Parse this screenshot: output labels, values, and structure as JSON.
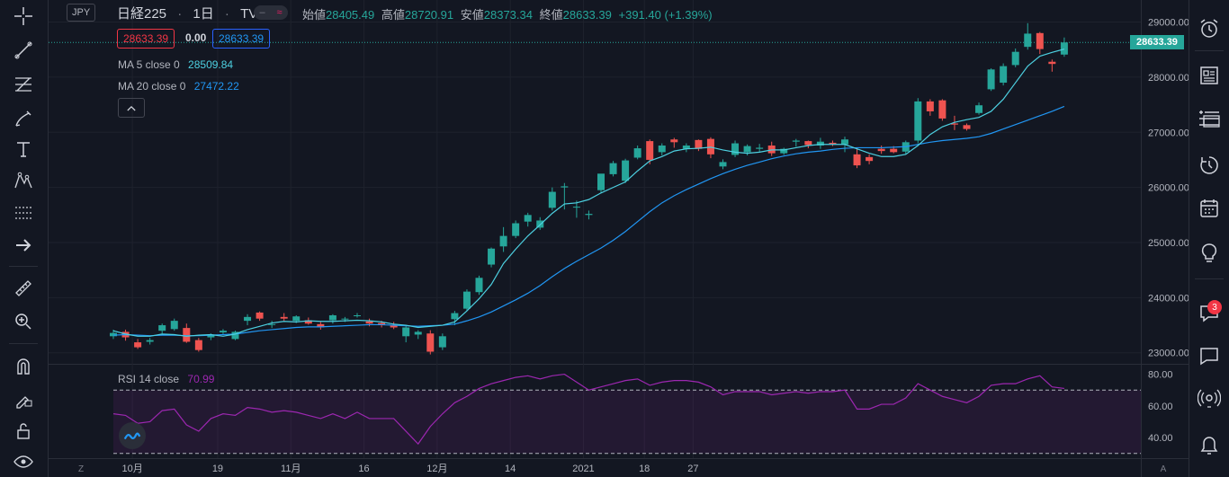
{
  "header": {
    "currency": "JPY",
    "symbol": "日経225",
    "interval": "1日",
    "exchange": "TVC",
    "ohlc": [
      {
        "label": "始値",
        "value": "28405.49"
      },
      {
        "label": "高値",
        "value": "28720.91"
      },
      {
        "label": "安値",
        "value": "28373.34"
      },
      {
        "label": "終値",
        "value": "28633.39"
      }
    ],
    "change": "+391.40 (+1.39%)",
    "sell_price": "28633.39",
    "spread": "0.00",
    "buy_price": "28633.39"
  },
  "indicators": {
    "ma5_label": "MA 5 close 0",
    "ma5_value": "28509.84",
    "ma20_label": "MA 20 close 0",
    "ma20_value": "27472.22",
    "rsi_label": "RSI 14 close",
    "rsi_value": "70.99"
  },
  "current_price_label": "28633.39",
  "right_toolbar": {
    "chat_badge": "3"
  },
  "colors": {
    "up": "#26a69a",
    "down": "#ef5350",
    "ma5": "#4dd0e1",
    "ma20": "#2196f3",
    "rsi": "#9c27b0"
  },
  "chart_data": {
    "type": "candlestick",
    "price_axis_ticks": [
      "29000.00",
      "28000.00",
      "27000.00",
      "26000.00",
      "25000.00",
      "24000.00",
      "23000.00"
    ],
    "price_axis_ticks_values": [
      29000,
      28000,
      27000,
      26000,
      25000,
      24000,
      23000
    ],
    "price_range": [
      22800,
      29400
    ],
    "rsi_axis_ticks": [
      "80.00",
      "60.00",
      "40.00"
    ],
    "rsi_axis_ticks_values": [
      80,
      60,
      40
    ],
    "rsi_range": [
      27,
      86
    ],
    "rsi_bands": [
      70,
      30
    ],
    "time_axis_labels": [
      "10月",
      "19",
      "11月",
      "16",
      "12月",
      "14",
      "2021",
      "18",
      "27"
    ],
    "time_axis_label_index": [
      2,
      9,
      15,
      21,
      27,
      33,
      39,
      44,
      48
    ],
    "time_axis_left_button": "Z",
    "time_axis_right_button": "A",
    "candles": [
      {
        "o": 23300,
        "h": 23420,
        "l": 23250,
        "c": 23360
      },
      {
        "o": 23380,
        "h": 23420,
        "l": 23220,
        "c": 23280
      },
      {
        "o": 23190,
        "h": 23250,
        "l": 23070,
        "c": 23100
      },
      {
        "o": 23200,
        "h": 23270,
        "l": 23150,
        "c": 23230
      },
      {
        "o": 23400,
        "h": 23530,
        "l": 23350,
        "c": 23500
      },
      {
        "o": 23430,
        "h": 23620,
        "l": 23400,
        "c": 23580
      },
      {
        "o": 23450,
        "h": 23530,
        "l": 23180,
        "c": 23200
      },
      {
        "o": 23230,
        "h": 23270,
        "l": 23020,
        "c": 23050
      },
      {
        "o": 23280,
        "h": 23350,
        "l": 23230,
        "c": 23320
      },
      {
        "o": 23370,
        "h": 23430,
        "l": 23340,
        "c": 23400
      },
      {
        "o": 23250,
        "h": 23400,
        "l": 23230,
        "c": 23380
      },
      {
        "o": 23580,
        "h": 23700,
        "l": 23500,
        "c": 23650
      },
      {
        "o": 23730,
        "h": 23750,
        "l": 23580,
        "c": 23620
      },
      {
        "o": 23520,
        "h": 23580,
        "l": 23450,
        "c": 23520
      },
      {
        "o": 23650,
        "h": 23720,
        "l": 23580,
        "c": 23620
      },
      {
        "o": 23580,
        "h": 23680,
        "l": 23540,
        "c": 23660
      },
      {
        "o": 23590,
        "h": 23640,
        "l": 23510,
        "c": 23530
      },
      {
        "o": 23520,
        "h": 23560,
        "l": 23420,
        "c": 23460
      },
      {
        "o": 23590,
        "h": 23700,
        "l": 23530,
        "c": 23680
      },
      {
        "o": 23610,
        "h": 23650,
        "l": 23560,
        "c": 23620
      },
      {
        "o": 23680,
        "h": 23720,
        "l": 23640,
        "c": 23680
      },
      {
        "o": 23570,
        "h": 23620,
        "l": 23480,
        "c": 23530
      },
      {
        "o": 23540,
        "h": 23580,
        "l": 23460,
        "c": 23500
      },
      {
        "o": 23500,
        "h": 23560,
        "l": 23430,
        "c": 23460
      },
      {
        "o": 23300,
        "h": 23500,
        "l": 23190,
        "c": 23460
      },
      {
        "o": 23330,
        "h": 23410,
        "l": 23250,
        "c": 23380
      },
      {
        "o": 23350,
        "h": 23410,
        "l": 22970,
        "c": 23020
      },
      {
        "o": 23100,
        "h": 23350,
        "l": 23050,
        "c": 23300
      },
      {
        "o": 23610,
        "h": 23760,
        "l": 23500,
        "c": 23720
      },
      {
        "o": 23800,
        "h": 24150,
        "l": 23760,
        "c": 24110
      },
      {
        "o": 24100,
        "h": 24400,
        "l": 24050,
        "c": 24360
      },
      {
        "o": 24600,
        "h": 24910,
        "l": 24550,
        "c": 24890
      },
      {
        "o": 24930,
        "h": 25280,
        "l": 24830,
        "c": 25120
      },
      {
        "o": 25120,
        "h": 25400,
        "l": 25080,
        "c": 25350
      },
      {
        "o": 25380,
        "h": 25540,
        "l": 25290,
        "c": 25500
      },
      {
        "o": 25270,
        "h": 25460,
        "l": 25230,
        "c": 25400
      },
      {
        "o": 25630,
        "h": 26000,
        "l": 25580,
        "c": 25920
      },
      {
        "o": 26000,
        "h": 26080,
        "l": 25600,
        "c": 26020
      },
      {
        "o": 25650,
        "h": 25760,
        "l": 25450,
        "c": 25650
      },
      {
        "o": 25500,
        "h": 25580,
        "l": 25420,
        "c": 25520
      },
      {
        "o": 25950,
        "h": 26200,
        "l": 25900,
        "c": 26250
      },
      {
        "o": 26240,
        "h": 26480,
        "l": 26200,
        "c": 26440
      },
      {
        "o": 26120,
        "h": 26520,
        "l": 26080,
        "c": 26490
      },
      {
        "o": 26540,
        "h": 26760,
        "l": 26510,
        "c": 26710
      },
      {
        "o": 26840,
        "h": 26870,
        "l": 26420,
        "c": 26500
      },
      {
        "o": 26640,
        "h": 26800,
        "l": 26580,
        "c": 26760
      },
      {
        "o": 26870,
        "h": 26900,
        "l": 26720,
        "c": 26820
      },
      {
        "o": 26700,
        "h": 26800,
        "l": 26640,
        "c": 26760
      },
      {
        "o": 26860,
        "h": 26870,
        "l": 26660,
        "c": 26700
      },
      {
        "o": 26880,
        "h": 26910,
        "l": 26530,
        "c": 26600
      },
      {
        "o": 26380,
        "h": 26510,
        "l": 26330,
        "c": 26460
      },
      {
        "o": 26590,
        "h": 26850,
        "l": 26550,
        "c": 26800
      },
      {
        "o": 26640,
        "h": 26780,
        "l": 26580,
        "c": 26750
      },
      {
        "o": 26700,
        "h": 26790,
        "l": 26640,
        "c": 26720
      },
      {
        "o": 26760,
        "h": 26830,
        "l": 26570,
        "c": 26620
      },
      {
        "o": 26620,
        "h": 26720,
        "l": 26590,
        "c": 26700
      },
      {
        "o": 26830,
        "h": 26880,
        "l": 26740,
        "c": 26850
      },
      {
        "o": 26840,
        "h": 26850,
        "l": 26710,
        "c": 26770
      },
      {
        "o": 26760,
        "h": 26900,
        "l": 26700,
        "c": 26830
      },
      {
        "o": 26810,
        "h": 26850,
        "l": 26750,
        "c": 26790
      },
      {
        "o": 26780,
        "h": 26920,
        "l": 26640,
        "c": 26870
      },
      {
        "o": 26600,
        "h": 26720,
        "l": 26350,
        "c": 26400
      },
      {
        "o": 26550,
        "h": 26600,
        "l": 26420,
        "c": 26480
      },
      {
        "o": 26700,
        "h": 26760,
        "l": 26610,
        "c": 26660
      },
      {
        "o": 26700,
        "h": 26750,
        "l": 26620,
        "c": 26640
      },
      {
        "o": 26650,
        "h": 26850,
        "l": 26600,
        "c": 26820
      },
      {
        "o": 26850,
        "h": 27620,
        "l": 26800,
        "c": 27560
      },
      {
        "o": 27560,
        "h": 27600,
        "l": 27300,
        "c": 27380
      },
      {
        "o": 27580,
        "h": 27600,
        "l": 27210,
        "c": 27250
      },
      {
        "o": 27160,
        "h": 27300,
        "l": 27040,
        "c": 27140
      },
      {
        "o": 27130,
        "h": 27160,
        "l": 27030,
        "c": 27060
      },
      {
        "o": 27350,
        "h": 27540,
        "l": 27320,
        "c": 27490
      },
      {
        "o": 27780,
        "h": 28160,
        "l": 27750,
        "c": 28140
      },
      {
        "o": 27900,
        "h": 28250,
        "l": 27850,
        "c": 28200
      },
      {
        "o": 28220,
        "h": 28520,
        "l": 28180,
        "c": 28460
      },
      {
        "o": 28550,
        "h": 28980,
        "l": 28500,
        "c": 28790
      },
      {
        "o": 28800,
        "h": 28820,
        "l": 28420,
        "c": 28510
      },
      {
        "o": 28280,
        "h": 28320,
        "l": 28100,
        "c": 28240
      },
      {
        "o": 28410,
        "h": 28720,
        "l": 28370,
        "c": 28630
      }
    ],
    "ma5": [
      23400,
      23340,
      23300,
      23300,
      23340,
      23330,
      23300,
      23320,
      23330,
      23300,
      23340,
      23420,
      23480,
      23540,
      23570,
      23560,
      23580,
      23570,
      23570,
      23580,
      23590,
      23580,
      23560,
      23520,
      23500,
      23460,
      23480,
      23500,
      23560,
      23760,
      23980,
      24240,
      24620,
      24880,
      25120,
      25320,
      25530,
      25700,
      25720,
      25780,
      25900,
      26000,
      26100,
      26300,
      26480,
      26560,
      26660,
      26700,
      26710,
      26730,
      26680,
      26640,
      26620,
      26640,
      26680,
      26680,
      26720,
      26760,
      26780,
      26780,
      26780,
      26700,
      26620,
      26560,
      26560,
      26600,
      26760,
      26960,
      27100,
      27180,
      27230,
      27270,
      27380,
      27600,
      27900,
      28200,
      28380,
      28450,
      28510
    ],
    "ma20": [
      23320,
      23330,
      23320,
      23310,
      23320,
      23320,
      23310,
      23310,
      23320,
      23330,
      23340,
      23370,
      23400,
      23420,
      23440,
      23460,
      23470,
      23470,
      23480,
      23490,
      23500,
      23510,
      23510,
      23500,
      23490,
      23480,
      23490,
      23500,
      23520,
      23580,
      23650,
      23740,
      23850,
      23960,
      24080,
      24220,
      24380,
      24530,
      24660,
      24780,
      24900,
      25040,
      25200,
      25380,
      25560,
      25720,
      25850,
      25960,
      26060,
      26160,
      26250,
      26330,
      26400,
      26460,
      26520,
      26570,
      26610,
      26640,
      26660,
      26690,
      26710,
      26720,
      26720,
      26720,
      26730,
      26740,
      26780,
      26820,
      26850,
      26870,
      26890,
      26920,
      26980,
      27060,
      27140,
      27220,
      27300,
      27380,
      27470
    ],
    "rsi": [
      55,
      54,
      49,
      50,
      57,
      58,
      48,
      44,
      52,
      55,
      54,
      59,
      58,
      56,
      57,
      56,
      54,
      52,
      55,
      52,
      56,
      52,
      52,
      52,
      44,
      36,
      47,
      55,
      62,
      66,
      71,
      74,
      76,
      78,
      79,
      77,
      79,
      80,
      75,
      70,
      72,
      74,
      76,
      77,
      73,
      75,
      76,
      76,
      75,
      72,
      67,
      69,
      69,
      69,
      67,
      68,
      69,
      68,
      69,
      69,
      70,
      58,
      58,
      61,
      61,
      65,
      74,
      70,
      66,
      64,
      62,
      66,
      73,
      74,
      74,
      77,
      79,
      72,
      71
    ]
  }
}
